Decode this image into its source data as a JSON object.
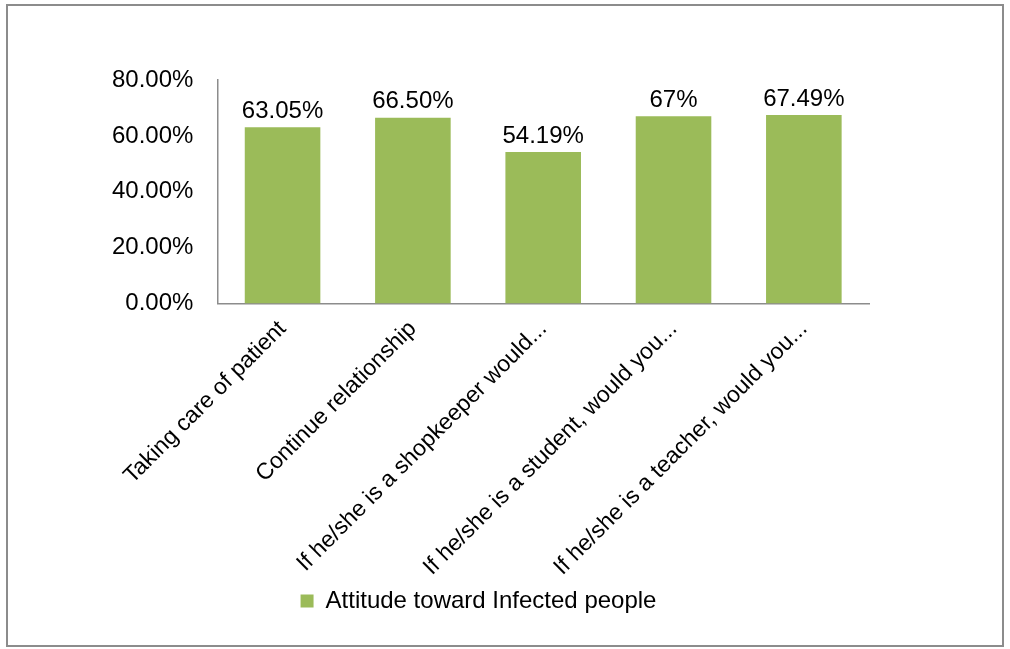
{
  "chart_data": {
    "type": "bar",
    "categories": [
      "Taking care of patient",
      "Continue relationship",
      "If he/she is a shopkeeper would...",
      "If he/she is a student, would you...",
      "If he/she is a teacher, would you..."
    ],
    "series": [
      {
        "name": "Attitude toward Infected people",
        "color": "#9bbb59",
        "values": [
          63.05,
          66.5,
          54.19,
          67,
          67.49
        ],
        "value_labels": [
          "63.05%",
          "66.50%",
          "54.19%",
          "67%",
          "67.49%"
        ]
      }
    ],
    "ylim": [
      0,
      80
    ],
    "yticks": [
      {
        "value": 0,
        "label": "0.00%"
      },
      {
        "value": 20,
        "label": "20.00%"
      },
      {
        "value": 40,
        "label": "40.00%"
      },
      {
        "value": 60,
        "label": "60.00%"
      },
      {
        "value": 80,
        "label": "80.00%"
      }
    ],
    "grid": false,
    "legend": "bottom"
  }
}
